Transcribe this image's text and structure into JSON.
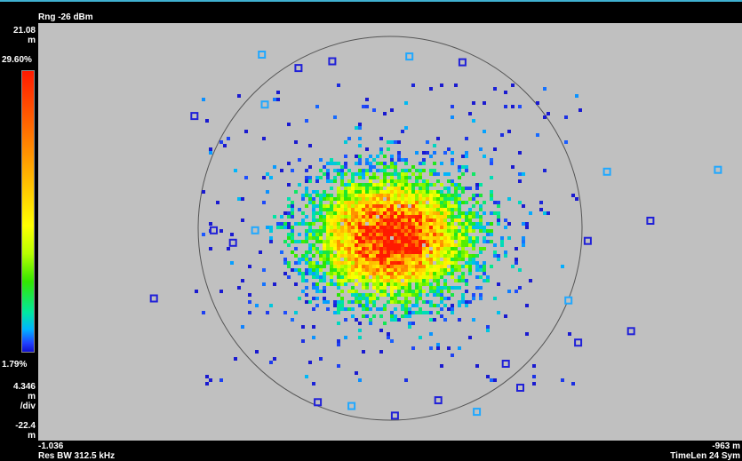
{
  "header": {
    "ref_level": "Rng -26 dBm"
  },
  "left_axis": {
    "top_value": "21.08",
    "top_unit": "m",
    "scale_top": "29.60%",
    "scale_bottom": "1.79%",
    "per_div_value": "4.346",
    "per_div_unit": "m",
    "per_div_label": "/div",
    "bottom_value": "-22.4",
    "bottom_unit": "m"
  },
  "footer": {
    "left_value": "-1.036",
    "res_bw": "Res BW 312.5 kHz",
    "right_value": "-963 m",
    "time_len": "TimeLen 24  Sym"
  },
  "colors": {
    "background": "#000000",
    "plot_background": "#c0c0c0",
    "circle": "#555555",
    "high_density": "#ff1a00",
    "low_density": "#1a1ad0"
  },
  "chart_data": {
    "type": "heatmap",
    "title": "",
    "xlabel": "",
    "ylabel": "",
    "xlim": [
      -1.036,
      -0.963
    ],
    "ylim": [
      -22.4,
      21.08
    ],
    "density_range_percent": [
      1.79,
      29.6
    ],
    "reference_circle": true,
    "cluster_center": [
      -0.9995,
      -1.0
    ],
    "cluster_std": [
      0.0059,
      4.6
    ],
    "outlier_points": [
      {
        "x": -1.0128,
        "y": 17.8
      },
      {
        "x": -1.009,
        "y": 16.4
      },
      {
        "x": -1.0055,
        "y": 17.1
      },
      {
        "x": -0.9975,
        "y": 17.6
      },
      {
        "x": -0.992,
        "y": 17.0
      },
      {
        "x": -1.0198,
        "y": 11.4
      },
      {
        "x": -1.0125,
        "y": 12.6
      },
      {
        "x": -1.0178,
        "y": -0.5
      },
      {
        "x": -1.0158,
        "y": -1.8
      },
      {
        "x": -1.0135,
        "y": -0.5
      },
      {
        "x": -1.024,
        "y": -7.6
      },
      {
        "x": -1.007,
        "y": -18.4
      },
      {
        "x": -1.0035,
        "y": -18.8
      },
      {
        "x": -0.999,
        "y": -19.8
      },
      {
        "x": -0.9945,
        "y": -18.2
      },
      {
        "x": -0.9905,
        "y": -19.4
      },
      {
        "x": -0.9875,
        "y": -14.4
      },
      {
        "x": -0.986,
        "y": -16.9
      },
      {
        "x": -0.981,
        "y": -7.8
      },
      {
        "x": -0.98,
        "y": -12.2
      },
      {
        "x": -0.979,
        "y": -1.6
      },
      {
        "x": -0.977,
        "y": 5.6
      },
      {
        "x": -0.9745,
        "y": -11.0
      },
      {
        "x": -0.9725,
        "y": 0.5
      },
      {
        "x": -0.9655,
        "y": 5.8
      }
    ]
  }
}
